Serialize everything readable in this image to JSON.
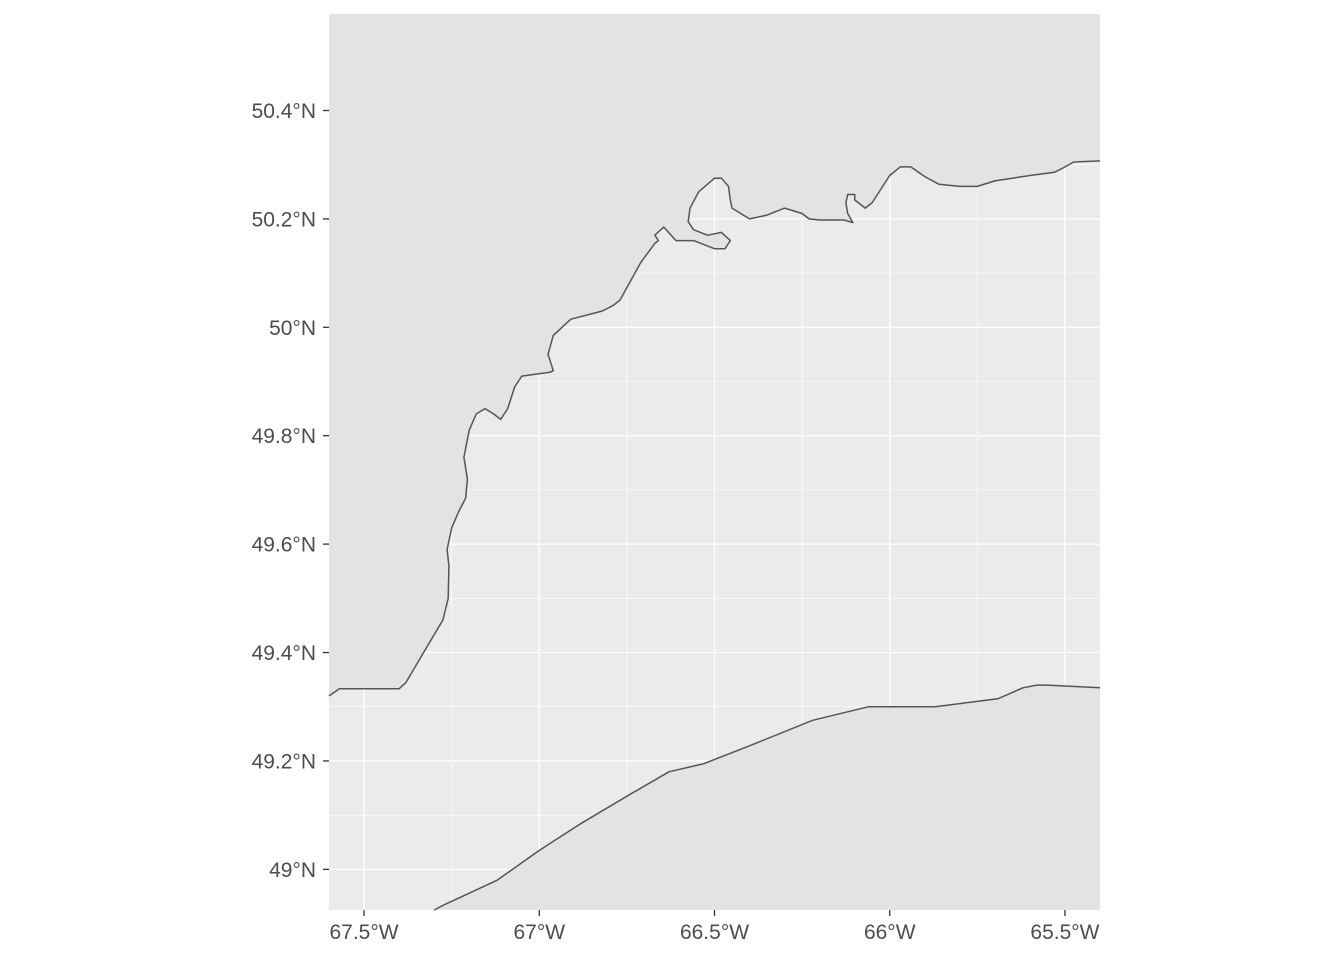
{
  "map": {
    "colors": {
      "panel_background": "#ebebeb",
      "land_fill": "#e3e3e3",
      "coastline": "#555555",
      "gridline": "#ffffff",
      "tick": "#333333",
      "tick_label": "#4d4d4d"
    },
    "x_axis": {
      "range": [
        -67.6,
        -65.4
      ],
      "ticks": [
        {
          "value": -67.5,
          "label": "67.5°W"
        },
        {
          "value": -67.0,
          "label": "67°W"
        },
        {
          "value": -66.5,
          "label": "66.5°W"
        },
        {
          "value": -66.0,
          "label": "66°W"
        },
        {
          "value": -65.5,
          "label": "65.5°W"
        }
      ]
    },
    "y_axis": {
      "range": [
        48.925,
        50.578
      ],
      "ticks": [
        {
          "value": 49.0,
          "label": "49°N"
        },
        {
          "value": 49.2,
          "label": "49.2°N"
        },
        {
          "value": 49.4,
          "label": "49.4°N"
        },
        {
          "value": 49.6,
          "label": "49.6°N"
        },
        {
          "value": 49.8,
          "label": "49.8°N"
        },
        {
          "value": 50.0,
          "label": "50°N"
        },
        {
          "value": 50.2,
          "label": "50.2°N"
        },
        {
          "value": 50.4,
          "label": "50.4°N"
        }
      ]
    },
    "grid": true,
    "north_shore": [
      [
        -67.6,
        49.32
      ],
      [
        -67.57,
        49.333
      ],
      [
        -67.5,
        49.333
      ],
      [
        -67.4,
        49.333
      ],
      [
        -67.38,
        49.345
      ],
      [
        -67.33,
        49.4
      ],
      [
        -67.275,
        49.46
      ],
      [
        -67.26,
        49.5
      ],
      [
        -67.258,
        49.56
      ],
      [
        -67.263,
        49.59
      ],
      [
        -67.25,
        49.63
      ],
      [
        -67.23,
        49.66
      ],
      [
        -67.21,
        49.685
      ],
      [
        -67.205,
        49.72
      ],
      [
        -67.21,
        49.74
      ],
      [
        -67.215,
        49.76
      ],
      [
        -67.2,
        49.81
      ],
      [
        -67.18,
        49.84
      ],
      [
        -67.155,
        49.85
      ],
      [
        -67.13,
        49.84
      ],
      [
        -67.11,
        49.83
      ],
      [
        -67.09,
        49.85
      ],
      [
        -67.07,
        49.89
      ],
      [
        -67.05,
        49.91
      ],
      [
        -66.97,
        49.917
      ],
      [
        -66.96,
        49.92
      ],
      [
        -66.97,
        49.94
      ],
      [
        -66.975,
        49.95
      ],
      [
        -66.96,
        49.985
      ],
      [
        -66.91,
        50.015
      ],
      [
        -66.82,
        50.03
      ],
      [
        -66.79,
        50.04
      ],
      [
        -66.77,
        50.05
      ],
      [
        -66.74,
        50.085
      ],
      [
        -66.71,
        50.12
      ],
      [
        -66.67,
        50.155
      ],
      [
        -66.66,
        50.16
      ],
      [
        -66.67,
        50.17
      ],
      [
        -66.645,
        50.185
      ],
      [
        -66.61,
        50.16
      ],
      [
        -66.56,
        50.16
      ],
      [
        -66.5,
        50.145
      ],
      [
        -66.47,
        50.145
      ],
      [
        -66.455,
        50.16
      ],
      [
        -66.48,
        50.175
      ],
      [
        -66.52,
        50.17
      ],
      [
        -66.56,
        50.18
      ],
      [
        -66.575,
        50.195
      ],
      [
        -66.57,
        50.22
      ],
      [
        -66.545,
        50.25
      ],
      [
        -66.5,
        50.275
      ],
      [
        -66.48,
        50.275
      ],
      [
        -66.46,
        50.26
      ],
      [
        -66.455,
        50.235
      ],
      [
        -66.45,
        50.22
      ],
      [
        -66.4,
        50.2
      ],
      [
        -66.35,
        50.207
      ],
      [
        -66.3,
        50.22
      ],
      [
        -66.25,
        50.21
      ],
      [
        -66.23,
        50.2
      ],
      [
        -66.2,
        50.198
      ],
      [
        -66.13,
        50.198
      ],
      [
        -66.105,
        50.193
      ],
      [
        -66.12,
        50.21
      ],
      [
        -66.125,
        50.23
      ],
      [
        -66.12,
        50.245
      ],
      [
        -66.1,
        50.245
      ],
      [
        -66.1,
        50.235
      ],
      [
        -66.07,
        50.22
      ],
      [
        -66.05,
        50.23
      ],
      [
        -66.0,
        50.28
      ],
      [
        -65.97,
        50.296
      ],
      [
        -65.94,
        50.296
      ],
      [
        -65.9,
        50.278
      ],
      [
        -65.86,
        50.264
      ],
      [
        -65.8,
        50.26
      ],
      [
        -65.75,
        50.26
      ],
      [
        -65.7,
        50.27
      ],
      [
        -65.6,
        50.28
      ],
      [
        -65.53,
        50.286
      ],
      [
        -65.5,
        50.296
      ],
      [
        -65.475,
        50.305
      ],
      [
        -65.4,
        50.307
      ]
    ],
    "south_shore": [
      [
        -67.3,
        48.925
      ],
      [
        -67.27,
        48.935
      ],
      [
        -67.22,
        48.95
      ],
      [
        -67.12,
        48.98
      ],
      [
        -67.0,
        49.035
      ],
      [
        -66.88,
        49.085
      ],
      [
        -66.75,
        49.135
      ],
      [
        -66.63,
        49.18
      ],
      [
        -66.53,
        49.195
      ],
      [
        -66.4,
        49.228
      ],
      [
        -66.22,
        49.275
      ],
      [
        -66.06,
        49.3
      ],
      [
        -65.87,
        49.3
      ],
      [
        -65.69,
        49.315
      ],
      [
        -65.62,
        49.335
      ],
      [
        -65.58,
        49.34
      ],
      [
        -65.55,
        49.34
      ],
      [
        -65.4,
        49.335
      ]
    ]
  }
}
